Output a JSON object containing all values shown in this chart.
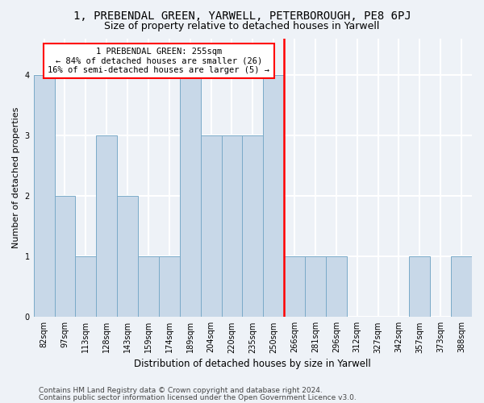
{
  "title1": "1, PREBENDAL GREEN, YARWELL, PETERBOROUGH, PE8 6PJ",
  "title2": "Size of property relative to detached houses in Yarwell",
  "xlabel": "Distribution of detached houses by size in Yarwell",
  "ylabel": "Number of detached properties",
  "footer1": "Contains HM Land Registry data © Crown copyright and database right 2024.",
  "footer2": "Contains public sector information licensed under the Open Government Licence v3.0.",
  "bins": [
    "82sqm",
    "97sqm",
    "113sqm",
    "128sqm",
    "143sqm",
    "159sqm",
    "174sqm",
    "189sqm",
    "204sqm",
    "220sqm",
    "235sqm",
    "250sqm",
    "266sqm",
    "281sqm",
    "296sqm",
    "312sqm",
    "327sqm",
    "342sqm",
    "357sqm",
    "373sqm",
    "388sqm"
  ],
  "values": [
    4,
    2,
    1,
    3,
    2,
    1,
    1,
    4,
    3,
    3,
    3,
    4,
    1,
    1,
    1,
    0,
    0,
    0,
    1,
    0,
    1
  ],
  "bar_color": "#c8d8e8",
  "bar_edge_color": "#7aaac8",
  "vline_x_bin": 11,
  "vline_color": "red",
  "annotation_line1": "1 PREBENDAL GREEN: 255sqm",
  "annotation_line2": "← 84% of detached houses are smaller (26)",
  "annotation_line3": "16% of semi-detached houses are larger (5) →",
  "annotation_box_color": "white",
  "annotation_box_edge": "red",
  "ylim": [
    0,
    4.6
  ],
  "yticks": [
    0,
    1,
    2,
    3,
    4
  ],
  "bg_color": "#eef2f7",
  "grid_color": "white",
  "title1_fontsize": 10,
  "title2_fontsize": 9,
  "xlabel_fontsize": 8.5,
  "ylabel_fontsize": 8,
  "tick_fontsize": 7,
  "footer_fontsize": 6.5,
  "annot_fontsize": 7.5
}
